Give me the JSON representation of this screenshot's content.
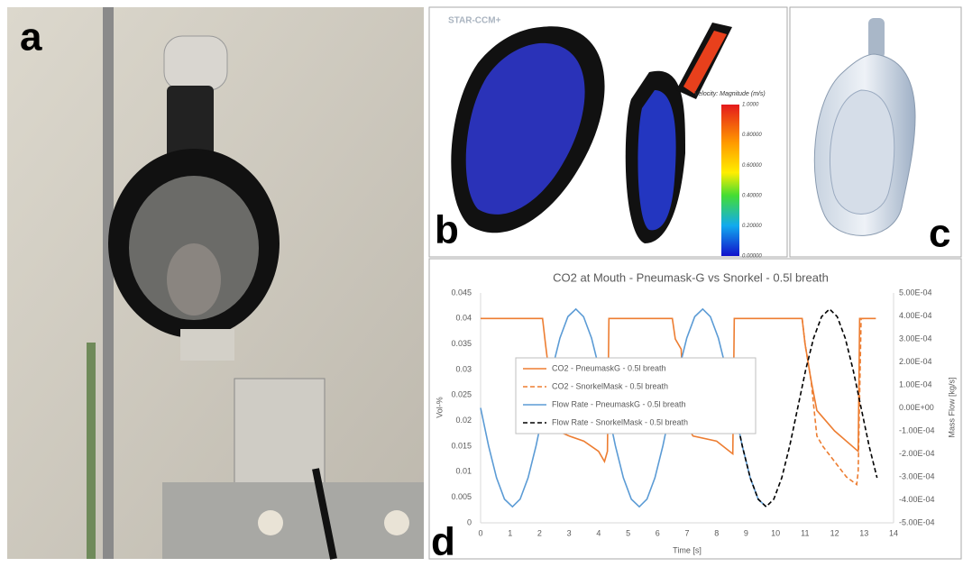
{
  "panels": {
    "a": {
      "label": "a"
    },
    "b": {
      "label": "b",
      "software": "STAR-CCM+",
      "colorbar_title": "Velocity: Magnitude (m/s)",
      "colorbar_ticks": [
        "1.0000",
        "0.80000",
        "0.60000",
        "0.40000",
        "0.20000",
        "0.00000"
      ]
    },
    "c": {
      "label": "c"
    },
    "d": {
      "label": "d"
    }
  },
  "chart_data": {
    "type": "line",
    "title": "CO2 at Mouth - Pneumask-G vs Snorkel - 0.5l breath",
    "xlabel": "Time [s]",
    "ylabel": "Vol-%",
    "y2label": "Mass Flow [kg/s]",
    "xlim": [
      0,
      14
    ],
    "xticks": [
      0,
      1,
      2,
      3,
      4,
      5,
      6,
      7,
      8,
      9,
      10,
      11,
      12,
      13,
      14
    ],
    "ylim": [
      0,
      0.045
    ],
    "yticks": [
      0,
      0.005,
      0.01,
      0.015,
      0.02,
      0.025,
      0.03,
      0.035,
      0.04,
      0.045
    ],
    "y2lim": [
      -0.0005,
      0.0005
    ],
    "y2ticks": [
      {
        "value": -0.0005,
        "label": "-5.00E-04"
      },
      {
        "value": -0.0004,
        "label": "-4.00E-04"
      },
      {
        "value": -0.0003,
        "label": "-3.00E-04"
      },
      {
        "value": -0.0002,
        "label": "-2.00E-04"
      },
      {
        "value": -0.0001,
        "label": "-1.00E-04"
      },
      {
        "value": 0,
        "label": "0.00E+00"
      },
      {
        "value": 0.0001,
        "label": "1.00E-04"
      },
      {
        "value": 0.0002,
        "label": "2.00E-04"
      },
      {
        "value": 0.0003,
        "label": "3.00E-04"
      },
      {
        "value": 0.0004,
        "label": "4.00E-04"
      },
      {
        "value": 0.0005,
        "label": "5.00E-04"
      }
    ],
    "grid": false,
    "series": [
      {
        "name": "CO2 - PneumaskG - 0.5l breath",
        "color": "#ed7d31",
        "dashed": false,
        "x": [
          0,
          2.1,
          2.2,
          2.35,
          2.6,
          3.0,
          3.5,
          4.0,
          4.2,
          4.3,
          4.35,
          6.5,
          6.6,
          6.8,
          6.9,
          7.2,
          8.0,
          8.55,
          8.6,
          10.9,
          11.0,
          11.2,
          11.4,
          12.0,
          12.8,
          12.85,
          13.0,
          13.4
        ],
        "values": [
          0.04,
          0.04,
          0.035,
          0.028,
          0.018,
          0.017,
          0.016,
          0.014,
          0.012,
          0.014,
          0.04,
          0.04,
          0.036,
          0.034,
          0.02,
          0.017,
          0.016,
          0.0135,
          0.04,
          0.04,
          0.035,
          0.028,
          0.022,
          0.018,
          0.014,
          0.04,
          0.04,
          0.04
        ]
      },
      {
        "name": "CO2 - SnorkelMask - 0.5l breath",
        "color": "#ed7d31",
        "dashed": true,
        "x": [
          10.9,
          11.0,
          11.2,
          11.4,
          11.6,
          12.0,
          12.4,
          12.75,
          12.8,
          12.9,
          13.0
        ],
        "values": [
          0.04,
          0.035,
          0.028,
          0.017,
          0.015,
          0.012,
          0.009,
          0.0075,
          0.01,
          0.04,
          0.04
        ]
      },
      {
        "name": "Flow Rate - PneumaskG - 0.5l breath",
        "color": "#5b9bd5",
        "dashed": false,
        "axis": "y2",
        "x": [
          0,
          0.27,
          0.54,
          0.81,
          1.08,
          1.34,
          1.61,
          1.88,
          2.15,
          2.42,
          2.69,
          2.96,
          3.23,
          3.49,
          3.76,
          4.03,
          4.3,
          4.57,
          4.84,
          5.11,
          5.38,
          5.64,
          5.91,
          6.18,
          6.45,
          6.72,
          6.99,
          7.26,
          7.53,
          7.79,
          8.06,
          8.33,
          8.6,
          8.87,
          9.14,
          9.41,
          9.68
        ],
        "values": [
          0,
          -0.000165,
          -0.000304,
          -0.000397,
          -0.00043,
          -0.000397,
          -0.000304,
          -0.000165,
          0,
          0.000165,
          0.000304,
          0.000397,
          0.00043,
          0.000397,
          0.000304,
          0.000165,
          0,
          -0.000165,
          -0.000304,
          -0.000397,
          -0.00043,
          -0.000397,
          -0.000304,
          -0.000165,
          0,
          0.000165,
          0.000304,
          0.000397,
          0.00043,
          0.000397,
          0.000304,
          0.000165,
          0,
          -0.000165,
          -0.000304,
          -0.000397,
          -0.00043
        ]
      },
      {
        "name": "Flow Rate - SnorkelMask - 0.5l breath",
        "color": "#000000",
        "dashed": true,
        "axis": "y2",
        "x": [
          8.6,
          8.87,
          9.14,
          9.41,
          9.68,
          9.94,
          10.21,
          10.48,
          10.75,
          11.02,
          11.29,
          11.56,
          11.83,
          12.09,
          12.36,
          12.63,
          12.9,
          13.17,
          13.44
        ],
        "values": [
          0,
          -0.000165,
          -0.000304,
          -0.000397,
          -0.00043,
          -0.000397,
          -0.000304,
          -0.000165,
          0,
          0.000165,
          0.000304,
          0.000397,
          0.00043,
          0.000397,
          0.000304,
          0.000165,
          0,
          -0.000165,
          -0.000304
        ]
      }
    ]
  }
}
